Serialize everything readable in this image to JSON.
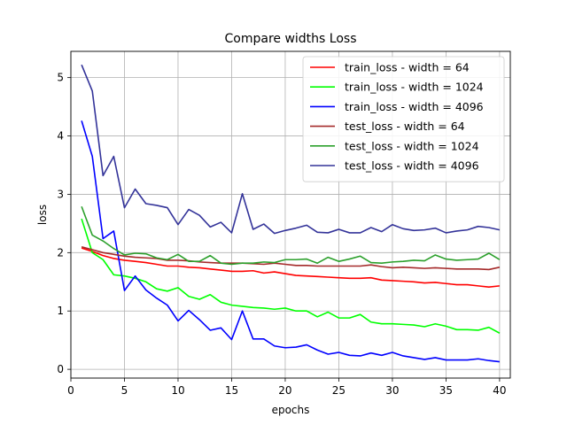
{
  "chart_data": {
    "type": "line",
    "title": "Compare widths Loss",
    "xlabel": "epochs",
    "ylabel": "loss",
    "xlim": [
      0,
      41
    ],
    "ylim": [
      -0.15,
      5.45
    ],
    "xticks": [
      0,
      5,
      10,
      15,
      20,
      25,
      30,
      35,
      40
    ],
    "yticks": [
      0,
      1,
      2,
      3,
      4,
      5
    ],
    "grid": true,
    "legend_position": "top-right",
    "x": [
      1,
      2,
      3,
      4,
      5,
      6,
      7,
      8,
      9,
      10,
      11,
      12,
      13,
      14,
      15,
      16,
      17,
      18,
      19,
      20,
      21,
      22,
      23,
      24,
      25,
      26,
      27,
      28,
      29,
      30,
      31,
      32,
      33,
      34,
      35,
      36,
      37,
      38,
      39,
      40
    ],
    "series": [
      {
        "name": "train_loss - width = 64",
        "color": "#ff0000",
        "values": [
          2.08,
          2.02,
          1.95,
          1.9,
          1.87,
          1.85,
          1.83,
          1.8,
          1.77,
          1.77,
          1.75,
          1.74,
          1.72,
          1.7,
          1.68,
          1.68,
          1.69,
          1.65,
          1.67,
          1.64,
          1.61,
          1.6,
          1.59,
          1.58,
          1.57,
          1.56,
          1.56,
          1.57,
          1.53,
          1.52,
          1.51,
          1.5,
          1.48,
          1.49,
          1.47,
          1.45,
          1.45,
          1.43,
          1.41,
          1.43
        ]
      },
      {
        "name": "train_loss - width = 1024",
        "color": "#00ff00",
        "values": [
          2.58,
          2.0,
          1.88,
          1.62,
          1.6,
          1.56,
          1.5,
          1.38,
          1.34,
          1.4,
          1.25,
          1.2,
          1.28,
          1.15,
          1.1,
          1.08,
          1.06,
          1.05,
          1.03,
          1.05,
          1.0,
          1.0,
          0.9,
          0.98,
          0.88,
          0.88,
          0.94,
          0.81,
          0.78,
          0.78,
          0.77,
          0.76,
          0.73,
          0.78,
          0.74,
          0.68,
          0.68,
          0.67,
          0.72,
          0.62
        ]
      },
      {
        "name": "train_loss - width = 4096",
        "color": "#0000ff",
        "values": [
          4.26,
          3.65,
          2.24,
          2.37,
          1.35,
          1.6,
          1.36,
          1.22,
          1.1,
          0.83,
          1.01,
          0.85,
          0.67,
          0.71,
          0.51,
          1.0,
          0.52,
          0.52,
          0.4,
          0.37,
          0.38,
          0.42,
          0.33,
          0.26,
          0.29,
          0.24,
          0.23,
          0.28,
          0.24,
          0.29,
          0.23,
          0.2,
          0.17,
          0.2,
          0.16,
          0.16,
          0.16,
          0.18,
          0.15,
          0.13
        ]
      },
      {
        "name": "test_loss - width = 64",
        "color": "#a52a2a",
        "values": [
          2.1,
          2.05,
          2.0,
          1.97,
          1.94,
          1.92,
          1.91,
          1.9,
          1.87,
          1.87,
          1.86,
          1.84,
          1.83,
          1.82,
          1.82,
          1.82,
          1.81,
          1.8,
          1.82,
          1.8,
          1.78,
          1.78,
          1.77,
          1.77,
          1.77,
          1.77,
          1.77,
          1.79,
          1.76,
          1.74,
          1.75,
          1.74,
          1.73,
          1.74,
          1.73,
          1.72,
          1.72,
          1.72,
          1.71,
          1.75
        ]
      },
      {
        "name": "test_loss - width = 1024",
        "color": "#2ca02c",
        "values": [
          2.79,
          2.3,
          2.2,
          2.07,
          1.96,
          1.99,
          1.98,
          1.91,
          1.88,
          1.97,
          1.85,
          1.85,
          1.95,
          1.82,
          1.8,
          1.82,
          1.82,
          1.84,
          1.83,
          1.88,
          1.88,
          1.89,
          1.82,
          1.92,
          1.85,
          1.89,
          1.94,
          1.83,
          1.82,
          1.84,
          1.85,
          1.87,
          1.86,
          1.96,
          1.89,
          1.87,
          1.88,
          1.89,
          1.99,
          1.88
        ]
      },
      {
        "name": "test_loss - width = 4096",
        "color": "#333399",
        "values": [
          5.22,
          4.77,
          3.32,
          3.65,
          2.77,
          3.09,
          2.84,
          2.81,
          2.77,
          2.48,
          2.74,
          2.64,
          2.44,
          2.52,
          2.34,
          3.01,
          2.4,
          2.49,
          2.33,
          2.38,
          2.42,
          2.47,
          2.35,
          2.34,
          2.4,
          2.34,
          2.34,
          2.43,
          2.36,
          2.48,
          2.41,
          2.38,
          2.39,
          2.42,
          2.34,
          2.37,
          2.39,
          2.45,
          2.43,
          2.39
        ]
      }
    ]
  }
}
